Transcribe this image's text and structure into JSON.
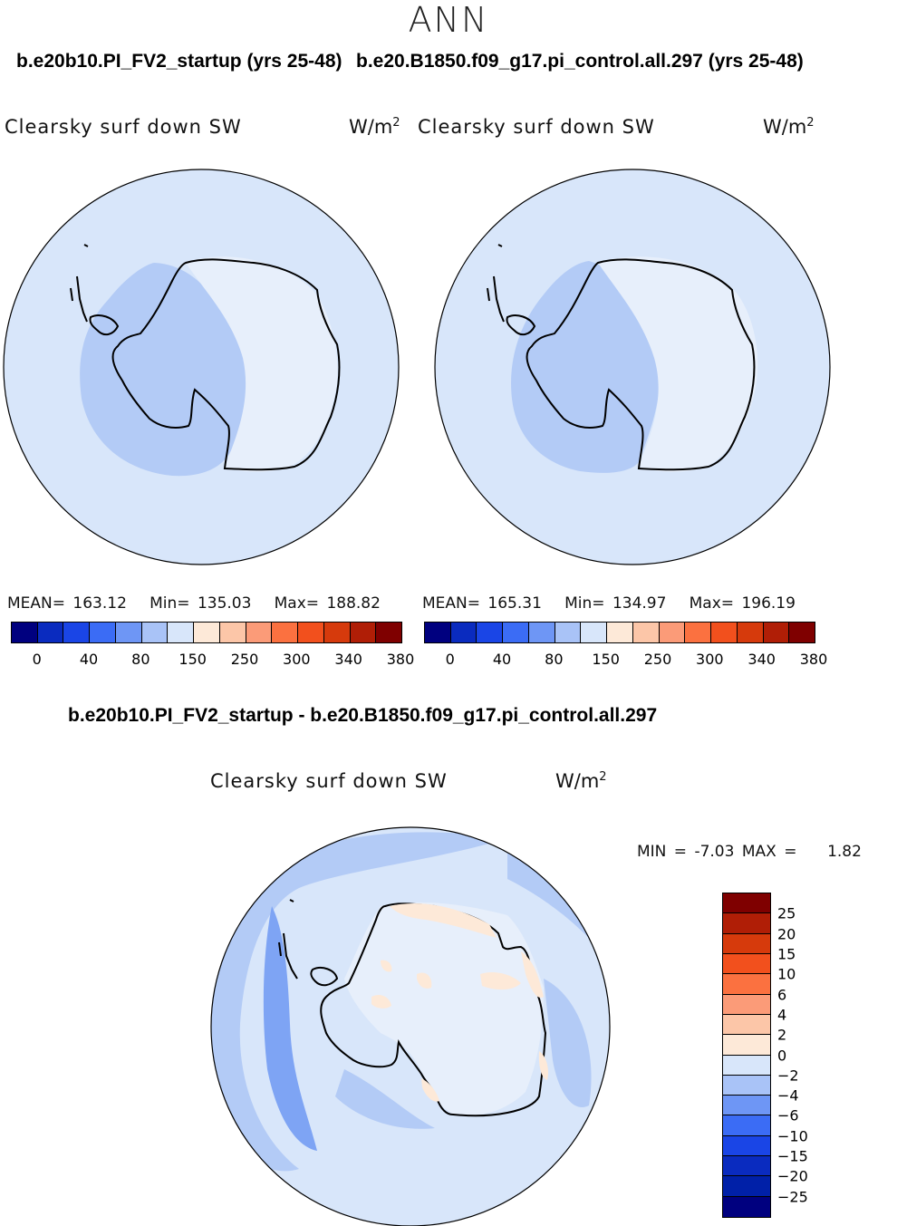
{
  "header": {
    "season": "ANN",
    "left_case": "b.e20b10.PI_FV2_startup (yrs 25-48)",
    "right_case": "b.e20.B1850.f09_g17.pi_control.all.297 (yrs 25-48)",
    "diff_case": "b.e20b10.PI_FV2_startup - b.e20.B1850.f09_g17.pi_control.all.297"
  },
  "panels": {
    "left": {
      "field": "Clearsky surf down SW",
      "units": "W/m",
      "units_exp": "2",
      "mean_label": "MEAN=",
      "mean": "163.12",
      "min_label": "Min=",
      "min": "135.03",
      "max_label": "Max=",
      "max": "188.82"
    },
    "right": {
      "field": "Clearsky surf down SW",
      "units": "W/m",
      "units_exp": "2",
      "mean_label": "MEAN=",
      "mean": "165.31",
      "min_label": "Min=",
      "min": "134.97",
      "max_label": "Max=",
      "max": "196.19"
    },
    "diff": {
      "field": "Clearsky surf down SW",
      "units": "W/m",
      "units_exp": "2",
      "min_label": "MIN =",
      "min": "-7.03",
      "max_label": "MAX =",
      "max": "1.82"
    }
  },
  "colorbar_abs": {
    "colors": [
      "#00007f",
      "#0a2bbf",
      "#1a45e6",
      "#3b6cf5",
      "#6e96f5",
      "#a9c3f7",
      "#d8e6fa",
      "#fde9d8",
      "#fcc6a8",
      "#fb9b78",
      "#fb7140",
      "#f2501d",
      "#d63a0c",
      "#b01e06",
      "#7f0000"
    ],
    "tick_labels": [
      "0",
      "40",
      "80",
      "150",
      "250",
      "300",
      "340",
      "380"
    ]
  },
  "colorbar_diff": {
    "colors": [
      "#7f0000",
      "#b01e06",
      "#d63a0c",
      "#f2501d",
      "#fb7140",
      "#fb9b78",
      "#fcc6a8",
      "#fde9d8",
      "#d8e6fa",
      "#a9c3f7",
      "#6e96f5",
      "#3b6cf5",
      "#1a45e6",
      "#0a2bbf",
      "#0020a8",
      "#00007f"
    ],
    "tick_labels": [
      "25",
      "20",
      "15",
      "10",
      "6",
      "4",
      "2",
      "0",
      "-2",
      "-4",
      "-6",
      "-10",
      "-15",
      "-20",
      "-25"
    ]
  },
  "map_colors": {
    "ocean": "#d8e6fa",
    "land": "#e8f0fb",
    "neg_light": "#a9c3f7",
    "neg_mid": "#7ea4f4",
    "pos_light": "#fde9d8"
  }
}
